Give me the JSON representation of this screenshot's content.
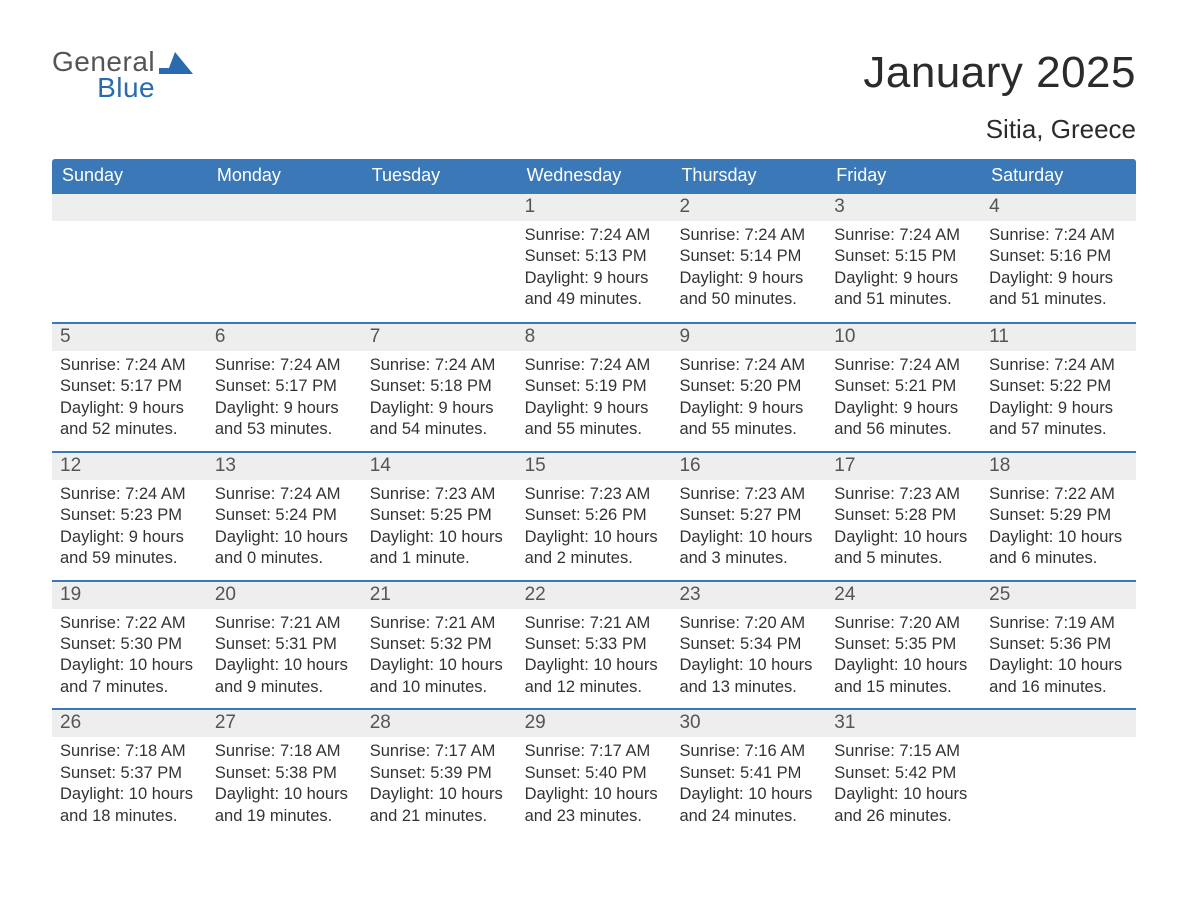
{
  "logo": {
    "general": "General",
    "blue": "Blue",
    "flag_color": "#2a6bb0"
  },
  "title": "January 2025",
  "location": "Sitia, Greece",
  "colors": {
    "header_bg": "#3b78b8",
    "header_text": "#ffffff",
    "daynum_bg": "#eeeeee",
    "daynum_text": "#555555",
    "body_text": "#333333",
    "week_border": "#3b78b8",
    "background": "#ffffff"
  },
  "typography": {
    "title_fontsize": 44,
    "location_fontsize": 26,
    "weekday_fontsize": 18,
    "daynum_fontsize": 19,
    "body_fontsize": 16.5
  },
  "weekdays": [
    "Sunday",
    "Monday",
    "Tuesday",
    "Wednesday",
    "Thursday",
    "Friday",
    "Saturday"
  ],
  "weeks": [
    [
      null,
      null,
      null,
      {
        "n": "1",
        "sunrise": "Sunrise: 7:24 AM",
        "sunset": "Sunset: 5:13 PM",
        "dl1": "Daylight: 9 hours",
        "dl2": "and 49 minutes."
      },
      {
        "n": "2",
        "sunrise": "Sunrise: 7:24 AM",
        "sunset": "Sunset: 5:14 PM",
        "dl1": "Daylight: 9 hours",
        "dl2": "and 50 minutes."
      },
      {
        "n": "3",
        "sunrise": "Sunrise: 7:24 AM",
        "sunset": "Sunset: 5:15 PM",
        "dl1": "Daylight: 9 hours",
        "dl2": "and 51 minutes."
      },
      {
        "n": "4",
        "sunrise": "Sunrise: 7:24 AM",
        "sunset": "Sunset: 5:16 PM",
        "dl1": "Daylight: 9 hours",
        "dl2": "and 51 minutes."
      }
    ],
    [
      {
        "n": "5",
        "sunrise": "Sunrise: 7:24 AM",
        "sunset": "Sunset: 5:17 PM",
        "dl1": "Daylight: 9 hours",
        "dl2": "and 52 minutes."
      },
      {
        "n": "6",
        "sunrise": "Sunrise: 7:24 AM",
        "sunset": "Sunset: 5:17 PM",
        "dl1": "Daylight: 9 hours",
        "dl2": "and 53 minutes."
      },
      {
        "n": "7",
        "sunrise": "Sunrise: 7:24 AM",
        "sunset": "Sunset: 5:18 PM",
        "dl1": "Daylight: 9 hours",
        "dl2": "and 54 minutes."
      },
      {
        "n": "8",
        "sunrise": "Sunrise: 7:24 AM",
        "sunset": "Sunset: 5:19 PM",
        "dl1": "Daylight: 9 hours",
        "dl2": "and 55 minutes."
      },
      {
        "n": "9",
        "sunrise": "Sunrise: 7:24 AM",
        "sunset": "Sunset: 5:20 PM",
        "dl1": "Daylight: 9 hours",
        "dl2": "and 55 minutes."
      },
      {
        "n": "10",
        "sunrise": "Sunrise: 7:24 AM",
        "sunset": "Sunset: 5:21 PM",
        "dl1": "Daylight: 9 hours",
        "dl2": "and 56 minutes."
      },
      {
        "n": "11",
        "sunrise": "Sunrise: 7:24 AM",
        "sunset": "Sunset: 5:22 PM",
        "dl1": "Daylight: 9 hours",
        "dl2": "and 57 minutes."
      }
    ],
    [
      {
        "n": "12",
        "sunrise": "Sunrise: 7:24 AM",
        "sunset": "Sunset: 5:23 PM",
        "dl1": "Daylight: 9 hours",
        "dl2": "and 59 minutes."
      },
      {
        "n": "13",
        "sunrise": "Sunrise: 7:24 AM",
        "sunset": "Sunset: 5:24 PM",
        "dl1": "Daylight: 10 hours",
        "dl2": "and 0 minutes."
      },
      {
        "n": "14",
        "sunrise": "Sunrise: 7:23 AM",
        "sunset": "Sunset: 5:25 PM",
        "dl1": "Daylight: 10 hours",
        "dl2": "and 1 minute."
      },
      {
        "n": "15",
        "sunrise": "Sunrise: 7:23 AM",
        "sunset": "Sunset: 5:26 PM",
        "dl1": "Daylight: 10 hours",
        "dl2": "and 2 minutes."
      },
      {
        "n": "16",
        "sunrise": "Sunrise: 7:23 AM",
        "sunset": "Sunset: 5:27 PM",
        "dl1": "Daylight: 10 hours",
        "dl2": "and 3 minutes."
      },
      {
        "n": "17",
        "sunrise": "Sunrise: 7:23 AM",
        "sunset": "Sunset: 5:28 PM",
        "dl1": "Daylight: 10 hours",
        "dl2": "and 5 minutes."
      },
      {
        "n": "18",
        "sunrise": "Sunrise: 7:22 AM",
        "sunset": "Sunset: 5:29 PM",
        "dl1": "Daylight: 10 hours",
        "dl2": "and 6 minutes."
      }
    ],
    [
      {
        "n": "19",
        "sunrise": "Sunrise: 7:22 AM",
        "sunset": "Sunset: 5:30 PM",
        "dl1": "Daylight: 10 hours",
        "dl2": "and 7 minutes."
      },
      {
        "n": "20",
        "sunrise": "Sunrise: 7:21 AM",
        "sunset": "Sunset: 5:31 PM",
        "dl1": "Daylight: 10 hours",
        "dl2": "and 9 minutes."
      },
      {
        "n": "21",
        "sunrise": "Sunrise: 7:21 AM",
        "sunset": "Sunset: 5:32 PM",
        "dl1": "Daylight: 10 hours",
        "dl2": "and 10 minutes."
      },
      {
        "n": "22",
        "sunrise": "Sunrise: 7:21 AM",
        "sunset": "Sunset: 5:33 PM",
        "dl1": "Daylight: 10 hours",
        "dl2": "and 12 minutes."
      },
      {
        "n": "23",
        "sunrise": "Sunrise: 7:20 AM",
        "sunset": "Sunset: 5:34 PM",
        "dl1": "Daylight: 10 hours",
        "dl2": "and 13 minutes."
      },
      {
        "n": "24",
        "sunrise": "Sunrise: 7:20 AM",
        "sunset": "Sunset: 5:35 PM",
        "dl1": "Daylight: 10 hours",
        "dl2": "and 15 minutes."
      },
      {
        "n": "25",
        "sunrise": "Sunrise: 7:19 AM",
        "sunset": "Sunset: 5:36 PM",
        "dl1": "Daylight: 10 hours",
        "dl2": "and 16 minutes."
      }
    ],
    [
      {
        "n": "26",
        "sunrise": "Sunrise: 7:18 AM",
        "sunset": "Sunset: 5:37 PM",
        "dl1": "Daylight: 10 hours",
        "dl2": "and 18 minutes."
      },
      {
        "n": "27",
        "sunrise": "Sunrise: 7:18 AM",
        "sunset": "Sunset: 5:38 PM",
        "dl1": "Daylight: 10 hours",
        "dl2": "and 19 minutes."
      },
      {
        "n": "28",
        "sunrise": "Sunrise: 7:17 AM",
        "sunset": "Sunset: 5:39 PM",
        "dl1": "Daylight: 10 hours",
        "dl2": "and 21 minutes."
      },
      {
        "n": "29",
        "sunrise": "Sunrise: 7:17 AM",
        "sunset": "Sunset: 5:40 PM",
        "dl1": "Daylight: 10 hours",
        "dl2": "and 23 minutes."
      },
      {
        "n": "30",
        "sunrise": "Sunrise: 7:16 AM",
        "sunset": "Sunset: 5:41 PM",
        "dl1": "Daylight: 10 hours",
        "dl2": "and 24 minutes."
      },
      {
        "n": "31",
        "sunrise": "Sunrise: 7:15 AM",
        "sunset": "Sunset: 5:42 PM",
        "dl1": "Daylight: 10 hours",
        "dl2": "and 26 minutes."
      },
      null
    ]
  ]
}
